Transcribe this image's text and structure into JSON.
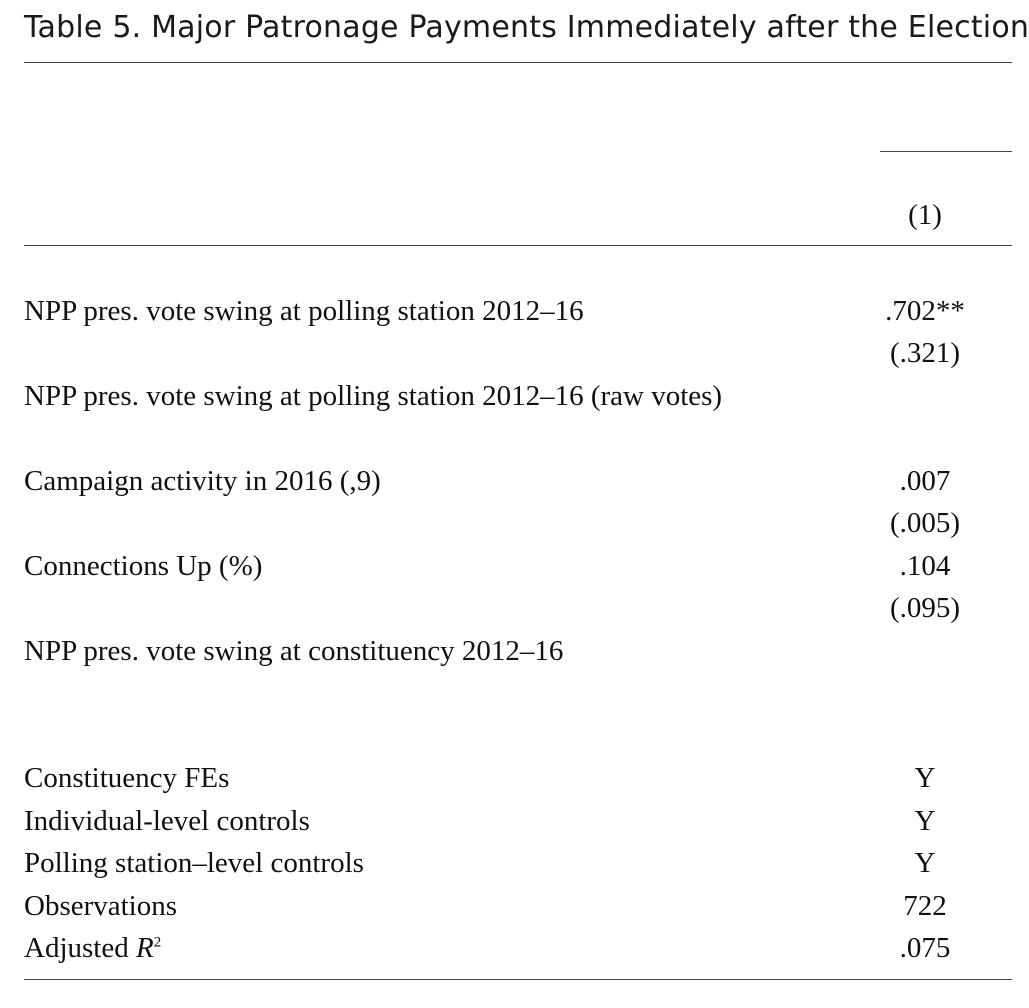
{
  "title": "Table 5. Major Patronage Payments Immediately after the Election",
  "column_header": "(1)",
  "rows": [
    {
      "label": "NPP pres. vote swing at polling station 2012–16",
      "coef": ".702**",
      "se": "(.321)"
    },
    {
      "label": "NPP pres. vote swing at polling station 2012–16 (raw votes)",
      "coef": "",
      "se": ""
    },
    {
      "label": "Campaign activity in 2016 (,9)",
      "coef": ".007",
      "se": "(.005)"
    },
    {
      "label": "Connections Up (%)",
      "coef": ".104",
      "se": "(.095)"
    },
    {
      "label": "NPP pres. vote swing at constituency 2012–16",
      "coef": "",
      "se": ""
    }
  ],
  "footer_rows": [
    {
      "label": "Constituency FEs",
      "value": "Y"
    },
    {
      "label": "Individual-level controls",
      "value": "Y"
    },
    {
      "label": "Polling station–level controls",
      "value": "Y"
    },
    {
      "label": "Observations",
      "value": "722"
    }
  ],
  "adjusted_r2": {
    "label_prefix": "Adjusted ",
    "label_var": "R",
    "label_sup": "2",
    "value": ".075"
  }
}
